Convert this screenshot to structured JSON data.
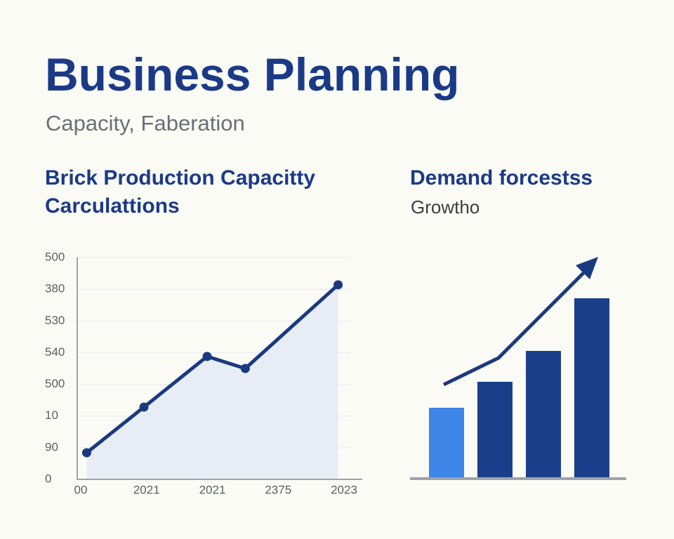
{
  "header": {
    "title": "Business Planning",
    "subtitle": "Capacity, Faberation"
  },
  "chart_data": [
    {
      "type": "line",
      "title": "Brick Production Capacitty Carculattions",
      "x": [
        0.09,
        0.96,
        1.92,
        2.5,
        3.91
      ],
      "series": [
        {
          "color": "#1a3a80",
          "values": [
            0.84,
            2.28,
            3.88,
            3.5,
            6.14
          ]
        }
      ],
      "area_color": "#e8ecf4",
      "xlim": [
        0,
        4
      ],
      "xticks": [
        {
          "value": 0,
          "label": "00"
        },
        {
          "value": 1,
          "label": "2021"
        },
        {
          "value": 2,
          "label": "2021"
        },
        {
          "value": 3,
          "label": "2375"
        },
        {
          "value": 4,
          "label": "2023"
        }
      ],
      "ylim": [
        0,
        7
      ],
      "yticks": [
        0,
        {
          "value": 1,
          "label": "90"
        },
        {
          "value": 2,
          "label": "10"
        },
        {
          "value": 3,
          "label": "500"
        },
        {
          "value": 4,
          "label": "540"
        },
        {
          "value": 5,
          "label": "530"
        },
        {
          "value": 6,
          "label": "380"
        },
        {
          "value": 7,
          "label": "500"
        }
      ],
      "grid": true
    },
    {
      "type": "bar",
      "title": "Demand forcestss",
      "subtitle": "Growtho",
      "values": [
        99,
        136,
        180,
        255
      ],
      "colors": [
        "#3d85e6",
        "#1a3f8a",
        "#1a3f8a",
        "#1a3f8a"
      ],
      "ylim": [
        0,
        300
      ]
    }
  ]
}
